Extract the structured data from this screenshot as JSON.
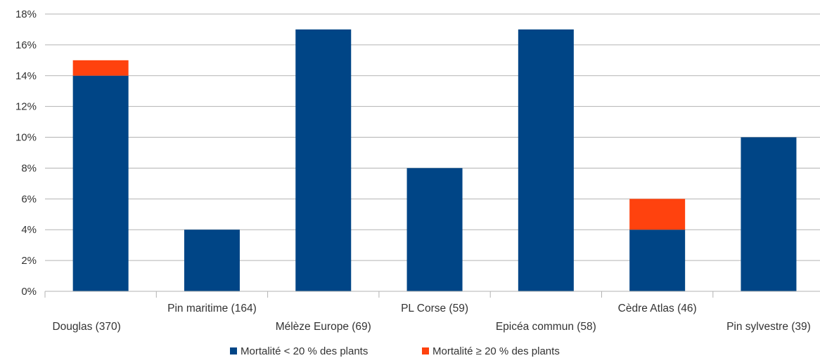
{
  "chart_data": {
    "type": "bar",
    "stacked": true,
    "categories": [
      "Douglas (370)",
      "Pin maritime (164)",
      "Mélèze Europe (69)",
      "PL Corse (59)",
      "Epicéa commun (58)",
      "Cèdre Atlas (46)",
      "Pin sylvestre (39)"
    ],
    "series": [
      {
        "name": "Mortalité < 20 % des plants",
        "color": "#004586",
        "values": [
          14,
          4,
          17,
          8,
          17,
          4,
          10
        ]
      },
      {
        "name": "Mortalité ≥ 20 % des plants",
        "color": "#ff420e",
        "values": [
          1,
          0,
          0,
          0,
          0,
          2,
          0
        ]
      }
    ],
    "ylim": [
      0,
      18
    ],
    "y_ticks": [
      "0%",
      "2%",
      "4%",
      "6%",
      "8%",
      "10%",
      "12%",
      "14%",
      "16%",
      "18%"
    ],
    "grid": true,
    "legend": "bottom",
    "title": "",
    "xlabel": "",
    "ylabel": ""
  }
}
